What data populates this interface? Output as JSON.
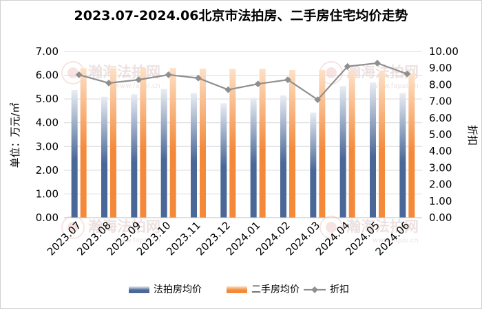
{
  "chart_data": {
    "type": "bar",
    "title": "2023.07-2024.06北京市法拍房、二手房住宅均价走势",
    "categories": [
      "2023.07",
      "2023.08",
      "2023.09",
      "2023.10",
      "2023.11",
      "2023.12",
      "2024.01",
      "2024.02",
      "2024.03",
      "2024.04",
      "2024.05",
      "2024.06"
    ],
    "ylabel": "单位：万元/㎡",
    "y2label": "折扣",
    "ylim": [
      0,
      7
    ],
    "y2lim": [
      0,
      10
    ],
    "yticks": [
      "0.00",
      "1.00",
      "2.00",
      "3.00",
      "4.00",
      "5.00",
      "6.00",
      "7.00"
    ],
    "y2ticks": [
      "0.00",
      "1.00",
      "2.00",
      "3.00",
      "4.00",
      "5.00",
      "6.00",
      "7.00",
      "8.00",
      "9.00",
      "10.00"
    ],
    "series": [
      {
        "name": "法拍房均价",
        "kind": "bar",
        "color": "#4a6897",
        "values": [
          5.38,
          5.1,
          5.2,
          5.42,
          5.25,
          4.82,
          5.05,
          5.15,
          4.43,
          5.55,
          5.7,
          5.25
        ]
      },
      {
        "name": "二手房均价",
        "kind": "bar",
        "color": "#f4893a",
        "values": [
          6.3,
          6.3,
          6.3,
          6.3,
          6.28,
          6.27,
          6.27,
          6.22,
          6.22,
          6.18,
          6.15,
          6.05
        ]
      },
      {
        "name": "折扣",
        "kind": "line",
        "axis": "right",
        "color": "#8f8f8f",
        "values": [
          8.6,
          8.1,
          8.3,
          8.6,
          8.4,
          7.7,
          8.05,
          8.3,
          7.1,
          9.1,
          9.3,
          8.65
        ]
      }
    ],
    "legend": {
      "position": "bottom",
      "labels": [
        "法拍房均价",
        "二手房均价",
        "折扣"
      ]
    },
    "grid": true,
    "watermarks": [
      {
        "cn": "瀚海法拍网",
        "url": "www.fapai.cn"
      },
      {
        "cn": "瀚海法拍网",
        "url": "www.fapai.cn"
      },
      {
        "cn": "瀚海法拍网",
        "url": "www.fapai.cn"
      },
      {
        "cn": "瀚海法拍网",
        "url": "www.fapai.cn"
      }
    ]
  }
}
